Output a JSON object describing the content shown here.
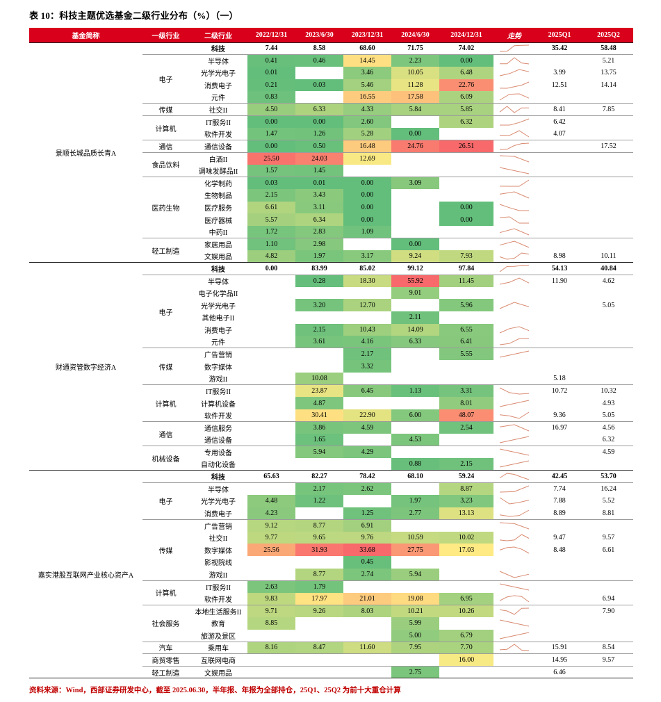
{
  "title": "表 10：科技主题优选基金二级行业分布（%）（一）",
  "source_note": "资料来源：Wind，西部证券研发中心，截至 2025.06.30，半年报、年报为全部持仓，25Q1、25Q2 为前十大重仓计算",
  "tech_label": "科技",
  "columns": [
    "基金简称",
    "一级行业",
    "二级行业",
    "2022/12/31",
    "2023/6/30",
    "2023/12/31",
    "2024/6/30",
    "2024/12/31",
    "走势",
    "2025Q1",
    "2025Q2"
  ],
  "colors": {
    "header_bg": "#d9001b",
    "header_fg": "#ffffff",
    "section_line": "#222222",
    "group_line": "#9b9b9b",
    "source_red": "#c00000"
  },
  "heatmap": {
    "low": "#63BE7B",
    "mid": "#FFEB84",
    "high": "#F8696B"
  },
  "sparkline_color": "#D98A70",
  "sections": [
    {
      "fund": "景顺长城品质长青A",
      "tech_row": {
        "values": [
          7.44,
          8.58,
          68.6,
          71.75,
          74.02
        ],
        "q1": 35.42,
        "q2": 58.48
      },
      "groups": [
        {
          "industry": "电子",
          "rows": [
            {
              "name": "半导体",
              "values": [
                0.41,
                0.46,
                14.45,
                2.23,
                0.0
              ],
              "q1": null,
              "q2": 5.21
            },
            {
              "name": "光学光电子",
              "values": [
                0.01,
                null,
                3.46,
                10.05,
                6.48
              ],
              "q1": 3.99,
              "q2": 13.75
            },
            {
              "name": "消费电子",
              "values": [
                0.21,
                0.03,
                5.46,
                11.28,
                22.76
              ],
              "q1": 12.51,
              "q2": 14.14
            },
            {
              "name": "元件",
              "values": [
                0.83,
                null,
                16.55,
                17.58,
                6.09
              ],
              "q1": null,
              "q2": null
            }
          ]
        },
        {
          "industry": "传媒",
          "rows": [
            {
              "name": "社交II",
              "values": [
                4.5,
                6.33,
                4.33,
                5.84,
                5.85
              ],
              "q1": 8.41,
              "q2": 7.85
            }
          ]
        },
        {
          "industry": "计算机",
          "rows": [
            {
              "name": "IT服务II",
              "values": [
                0.0,
                0.0,
                2.6,
                null,
                6.32
              ],
              "q1": 6.42,
              "q2": null
            },
            {
              "name": "软件开发",
              "values": [
                1.47,
                1.26,
                5.28,
                0.0,
                null
              ],
              "q1": 4.07,
              "q2": null
            }
          ]
        },
        {
          "industry": "通信",
          "rows": [
            {
              "name": "通信设备",
              "values": [
                0.0,
                0.5,
                16.48,
                24.76,
                26.51
              ],
              "q1": null,
              "q2": 17.52
            }
          ]
        },
        {
          "industry": "食品饮料",
          "rows": [
            {
              "name": "白酒II",
              "values": [
                25.5,
                24.03,
                12.69,
                null,
                null
              ],
              "q1": null,
              "q2": null
            },
            {
              "name": "调味发酵品II",
              "values": [
                1.57,
                1.45,
                null,
                null,
                null
              ],
              "q1": null,
              "q2": null
            }
          ]
        },
        {
          "industry": "医药生物",
          "rows": [
            {
              "name": "化学制药",
              "values": [
                0.03,
                0.01,
                0.0,
                3.09,
                null
              ],
              "q1": null,
              "q2": null
            },
            {
              "name": "生物制品",
              "values": [
                2.15,
                3.43,
                0.0,
                null,
                null
              ],
              "q1": null,
              "q2": null
            },
            {
              "name": "医疗服务",
              "values": [
                6.61,
                3.11,
                0.0,
                null,
                0.0
              ],
              "q1": null,
              "q2": null
            },
            {
              "name": "医疗器械",
              "values": [
                5.57,
                6.34,
                0.0,
                null,
                0.0
              ],
              "q1": null,
              "q2": null
            },
            {
              "name": "中药II",
              "values": [
                1.72,
                2.83,
                1.09,
                null,
                null
              ],
              "q1": null,
              "q2": null
            }
          ]
        },
        {
          "industry": "轻工制造",
          "rows": [
            {
              "name": "家居用品",
              "values": [
                1.1,
                2.98,
                null,
                0.0,
                null
              ],
              "q1": null,
              "q2": null
            },
            {
              "name": "文娱用品",
              "values": [
                4.82,
                1.97,
                3.17,
                9.24,
                7.93
              ],
              "q1": 8.98,
              "q2": 10.11
            }
          ]
        }
      ]
    },
    {
      "fund": "财通资管数字经济A",
      "tech_row": {
        "values": [
          0.0,
          83.99,
          85.02,
          99.12,
          97.84
        ],
        "q1": 54.13,
        "q2": 40.84
      },
      "groups": [
        {
          "industry": "电子",
          "rows": [
            {
              "name": "半导体",
              "values": [
                null,
                0.28,
                18.3,
                55.92,
                11.45
              ],
              "q1": 11.9,
              "q2": 4.62
            },
            {
              "name": "电子化学品II",
              "values": [
                null,
                null,
                null,
                9.01,
                null
              ],
              "q1": null,
              "q2": null
            },
            {
              "name": "光学光电子",
              "values": [
                null,
                3.2,
                12.7,
                null,
                5.96
              ],
              "q1": null,
              "q2": 5.05
            },
            {
              "name": "其他电子II",
              "values": [
                null,
                null,
                null,
                2.11,
                null
              ],
              "q1": null,
              "q2": null
            },
            {
              "name": "消费电子",
              "values": [
                null,
                2.15,
                10.43,
                14.09,
                6.55
              ],
              "q1": null,
              "q2": null
            },
            {
              "name": "元件",
              "values": [
                null,
                3.61,
                4.16,
                6.33,
                6.41
              ],
              "q1": null,
              "q2": null
            }
          ]
        },
        {
          "industry": "传媒",
          "rows": [
            {
              "name": "广告营销",
              "values": [
                null,
                null,
                2.17,
                null,
                5.55
              ],
              "q1": null,
              "q2": null
            },
            {
              "name": "数字媒体",
              "values": [
                null,
                null,
                3.32,
                null,
                null
              ],
              "q1": null,
              "q2": null
            },
            {
              "name": "游戏II",
              "values": [
                null,
                10.08,
                null,
                null,
                null
              ],
              "q1": 5.18,
              "q2": null
            }
          ]
        },
        {
          "industry": "计算机",
          "rows": [
            {
              "name": "IT服务II",
              "values": [
                null,
                23.87,
                6.45,
                1.13,
                3.31
              ],
              "q1": 10.72,
              "q2": 10.32
            },
            {
              "name": "计算机设备",
              "values": [
                null,
                4.87,
                null,
                null,
                8.01
              ],
              "q1": null,
              "q2": 4.93
            },
            {
              "name": "软件开发",
              "values": [
                null,
                30.41,
                22.9,
                6.0,
                48.07
              ],
              "q1": 9.36,
              "q2": 5.05
            }
          ]
        },
        {
          "industry": "通信",
          "rows": [
            {
              "name": "通信服务",
              "values": [
                null,
                3.86,
                4.59,
                null,
                2.54
              ],
              "q1": 16.97,
              "q2": 4.56
            },
            {
              "name": "通信设备",
              "values": [
                null,
                1.65,
                null,
                4.53,
                null
              ],
              "q1": null,
              "q2": 6.32
            }
          ]
        },
        {
          "industry": "机械设备",
          "rows": [
            {
              "name": "专用设备",
              "values": [
                null,
                5.94,
                4.29,
                null,
                null
              ],
              "q1": null,
              "q2": 4.59
            },
            {
              "name": "自动化设备",
              "values": [
                null,
                null,
                null,
                0.88,
                2.15
              ],
              "q1": null,
              "q2": null
            }
          ]
        }
      ]
    },
    {
      "fund": "嘉实港股互联网产业核心资产A",
      "tech_row": {
        "values": [
          65.63,
          82.27,
          78.42,
          68.1,
          59.24
        ],
        "q1": 42.45,
        "q2": 53.7
      },
      "groups": [
        {
          "industry": "电子",
          "rows": [
            {
              "name": "半导体",
              "values": [
                null,
                2.17,
                2.62,
                null,
                8.87
              ],
              "q1": 7.74,
              "q2": 16.24
            },
            {
              "name": "光学光电子",
              "values": [
                4.48,
                1.22,
                null,
                1.97,
                3.23
              ],
              "q1": 7.88,
              "q2": 5.52
            },
            {
              "name": "消费电子",
              "values": [
                4.23,
                null,
                1.25,
                2.77,
                13.13
              ],
              "q1": 8.89,
              "q2": 8.81
            }
          ]
        },
        {
          "industry": "传媒",
          "rows": [
            {
              "name": "广告营销",
              "values": [
                9.12,
                8.77,
                6.91,
                null,
                null
              ],
              "q1": null,
              "q2": null
            },
            {
              "name": "社交II",
              "values": [
                9.77,
                9.65,
                9.76,
                10.59,
                10.02
              ],
              "q1": 9.47,
              "q2": 9.57
            },
            {
              "name": "数字媒体",
              "values": [
                25.56,
                31.93,
                33.68,
                27.75,
                17.03
              ],
              "q1": 8.48,
              "q2": 6.61
            },
            {
              "name": "影视院线",
              "values": [
                null,
                null,
                0.45,
                null,
                null
              ],
              "q1": null,
              "q2": null
            },
            {
              "name": "游戏II",
              "values": [
                null,
                8.77,
                2.74,
                5.94,
                null
              ],
              "q1": null,
              "q2": null
            }
          ]
        },
        {
          "industry": "计算机",
          "rows": [
            {
              "name": "IT服务II",
              "values": [
                2.63,
                1.79,
                null,
                null,
                null
              ],
              "q1": null,
              "q2": null
            },
            {
              "name": "软件开发",
              "values": [
                9.83,
                17.97,
                21.01,
                19.08,
                6.95
              ],
              "q1": null,
              "q2": 6.94
            }
          ]
        },
        {
          "industry": "社会服务",
          "rows": [
            {
              "name": "本地生活服务II",
              "values": [
                9.71,
                9.26,
                8.03,
                10.21,
                10.26
              ],
              "q1": null,
              "q2": 7.9
            },
            {
              "name": "教育",
              "values": [
                8.85,
                null,
                null,
                5.99,
                null
              ],
              "q1": null,
              "q2": null
            },
            {
              "name": "旅游及景区",
              "values": [
                null,
                null,
                null,
                5.0,
                6.79
              ],
              "q1": null,
              "q2": null
            }
          ]
        },
        {
          "industry": "汽车",
          "rows": [
            {
              "name": "乘用车",
              "values": [
                8.16,
                8.47,
                11.6,
                7.95,
                7.7
              ],
              "q1": 15.91,
              "q2": 8.54
            }
          ]
        },
        {
          "industry": "商贸零售",
          "rows": [
            {
              "name": "互联网电商",
              "values": [
                null,
                null,
                null,
                null,
                16.0
              ],
              "q1": 14.95,
              "q2": 9.57
            }
          ]
        },
        {
          "industry": "轻工制造",
          "rows": [
            {
              "name": "文娱用品",
              "values": [
                null,
                null,
                null,
                2.75,
                null
              ],
              "q1": 6.46,
              "q2": null
            }
          ]
        }
      ]
    }
  ]
}
